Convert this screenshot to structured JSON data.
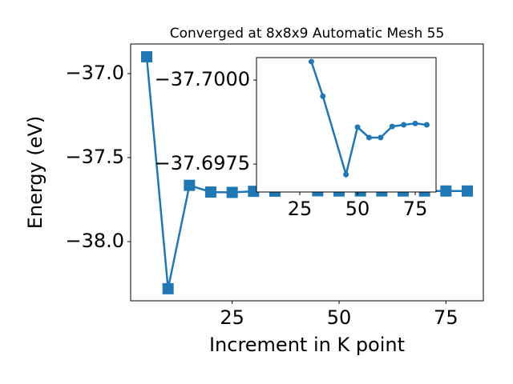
{
  "chart_data": [
    {
      "type": "line",
      "title": "Converged at 8x8x9 Automatic Mesh 55",
      "x_label": "Increment in K point",
      "y_label": "Energy (eV)",
      "x": [
        5,
        10,
        15,
        20,
        25,
        30,
        35,
        45,
        50,
        55,
        60,
        65,
        70,
        75,
        80
      ],
      "series": [
        {
          "color": "#1f77b4",
          "marker": "square",
          "values": [
            -36.9,
            -38.28,
            -37.665,
            -37.705,
            -37.707,
            -37.7006,
            -37.6995,
            -37.6972,
            -37.6986,
            -37.6983,
            -37.6983,
            -37.6986,
            -37.6987,
            -37.6987,
            -37.6987
          ]
        }
      ],
      "xlim": [
        1.25,
        83.75
      ],
      "ylim": [
        -38.352,
        -36.824
      ],
      "xticks": [
        25,
        50,
        75
      ],
      "yticks": [
        {
          "value": -38.0,
          "label": "−38.0"
        },
        {
          "value": -37.5,
          "label": "−37.5"
        },
        {
          "value": -37.0,
          "label": "−37.0"
        }
      ]
    },
    {
      "type": "line",
      "x": [
        30,
        35,
        45,
        50,
        55,
        60,
        65,
        70,
        75,
        80
      ],
      "series": [
        {
          "color": "#1f77b4",
          "marker": "circle",
          "values": [
            -37.70055,
            -37.69952,
            -37.69719,
            -37.6986,
            -37.69829,
            -37.69829,
            -37.69862,
            -37.69867,
            -37.69871,
            -37.69867
          ]
        }
      ],
      "xlim": [
        6.25,
        84
      ],
      "ylim": [
        -37.69667,
        -37.70067
      ],
      "xticks": [
        25,
        50,
        75
      ],
      "yticks": [
        {
          "value": -37.7,
          "label": "−37.7000"
        },
        {
          "value": -37.6975,
          "label": "−37.6975"
        }
      ]
    }
  ]
}
